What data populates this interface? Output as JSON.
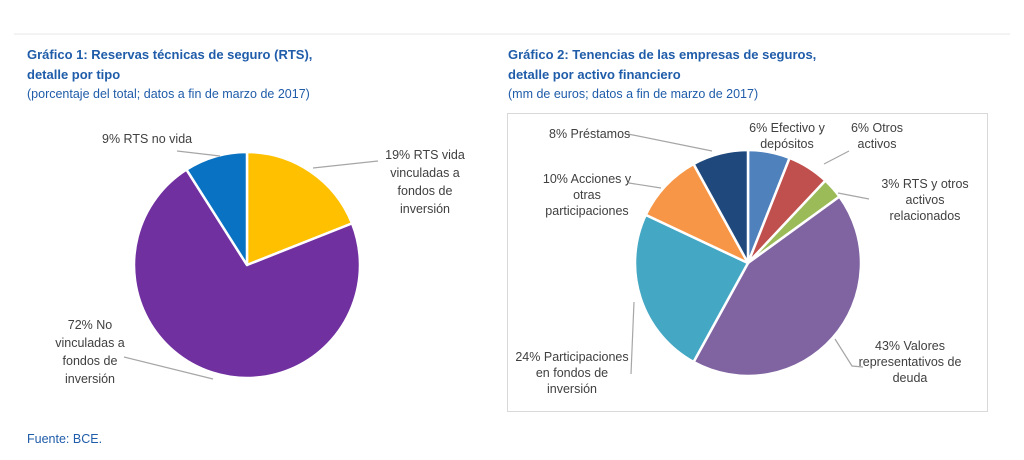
{
  "source_note": "Fuente: BCE.",
  "styles": {
    "title_color": "#1f5ca9",
    "label_color": "#404040",
    "leader_line_color": "#a6a6a6",
    "chart2_box_border": "#d9d9d9",
    "slice_separator_color": "#ffffff"
  },
  "chart_data": [
    {
      "type": "pie",
      "id": "rts-by-type",
      "title_lines": [
        "Gráfico 1: Reservas técnicas de seguro (RTS),",
        "detalle por tipo"
      ],
      "subtitle": "(porcentaje del total; datos a fin de marzo de 2017)",
      "start_angle_deg": 0,
      "direction": "clockwise",
      "slices": [
        {
          "pct": 19,
          "label": "RTS vida vinculadas a fondos de inversión",
          "callout": "19% RTS vida vinculadas a fondos de inversión",
          "color": "#FFC000"
        },
        {
          "pct": 72,
          "label": "No vinculadas a fondos de inversión",
          "callout": "72% No vinculadas a fondos de inversión",
          "color": "#7030A0"
        },
        {
          "pct": 9,
          "label": "RTS no vida",
          "callout": "9% RTS no vida",
          "color": "#0A72C2"
        }
      ]
    },
    {
      "type": "pie",
      "id": "holdings-by-financial-asset",
      "title_lines": [
        "Gráfico 2: Tenencias de las empresas de seguros,",
        "detalle por activo financiero"
      ],
      "subtitle": "(mm de euros; datos a fin de marzo de 2017)",
      "start_angle_deg": 0,
      "direction": "clockwise",
      "slices": [
        {
          "pct": 6,
          "label": "Efectivo y depósitos",
          "callout": "6% Efectivo y depósitos",
          "color": "#4F81BD"
        },
        {
          "pct": 6,
          "label": "Otros activos",
          "callout": "6% Otros activos",
          "color": "#C0504D"
        },
        {
          "pct": 3,
          "label": "RTS y otros activos relacionados",
          "callout": "3% RTS y otros activos relacionados",
          "color": "#9BBB59"
        },
        {
          "pct": 43,
          "label": "Valores representativos de deuda",
          "callout": "43% Valores representativos de deuda",
          "color": "#8064A2"
        },
        {
          "pct": 24,
          "label": "Participaciones en fondos de inversión",
          "callout": "24% Participaciones en fondos de inversión",
          "color": "#44A8C4"
        },
        {
          "pct": 10,
          "label": "Acciones y otras participaciones",
          "callout": "10% Acciones y otras participaciones",
          "color": "#F79646"
        },
        {
          "pct": 8,
          "label": "Préstamos",
          "callout": "8% Préstamos",
          "color": "#1F497D"
        }
      ]
    }
  ]
}
